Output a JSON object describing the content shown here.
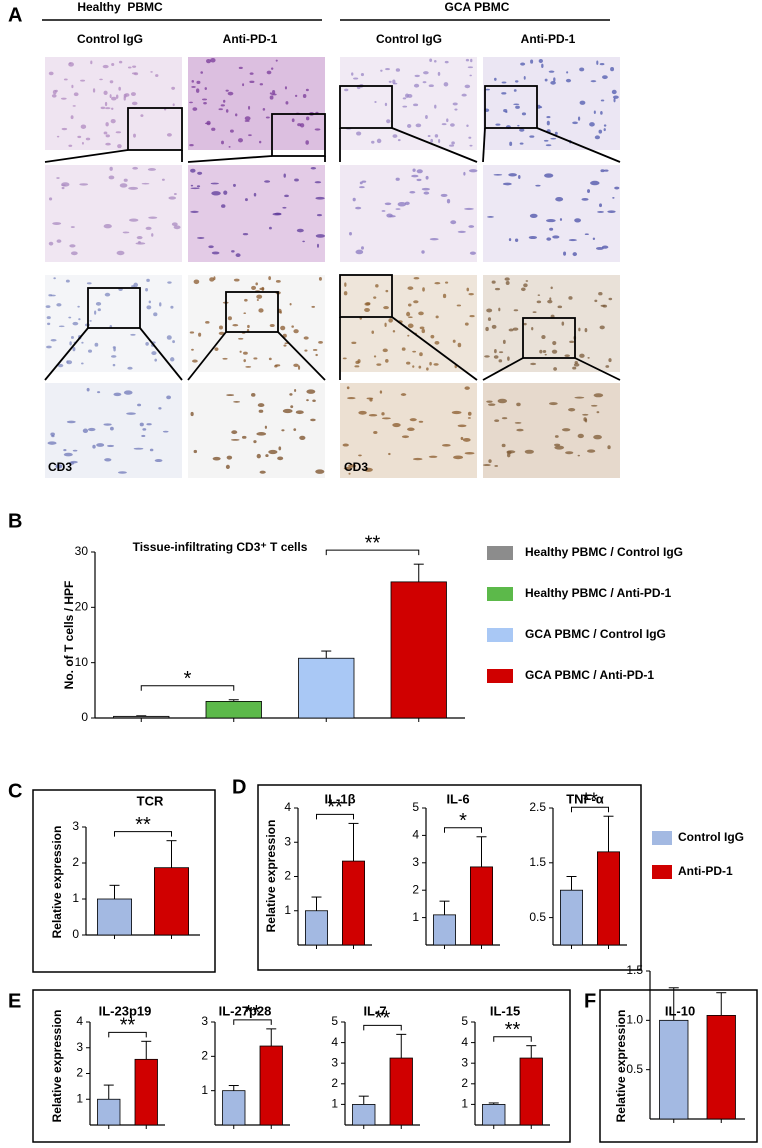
{
  "panel_a": {
    "label": "A",
    "groups": [
      {
        "title": "Healthy  PBMC",
        "columns": [
          "Control IgG",
          "Anti-PD-1"
        ]
      },
      {
        "title": "GCA PBMC",
        "columns": [
          "Control IgG",
          "Anti-PD-1"
        ]
      }
    ],
    "stain_labels": [
      "CD3",
      "CD3"
    ]
  },
  "shared_legend": {
    "series": [
      {
        "name": "Control IgG",
        "color": "#a3b9e2"
      },
      {
        "name": "Anti-PD-1",
        "color": "#d00000"
      }
    ]
  },
  "chart_data": [
    {
      "type": "bar",
      "panel": "B",
      "title": "Tissue-infiltrating CD3⁺ T cells",
      "y_label": "No. of T cells / HPF",
      "categories": [
        null
      ],
      "series": [
        {
          "name": "Healthy PBMC / Control IgG",
          "color": "#8c8c8c",
          "values": [
            0.3
          ],
          "errors": [
            0.1
          ]
        },
        {
          "name": "Healthy PBMC / Anti-PD-1",
          "color": "#5cb94a",
          "values": [
            3.0
          ],
          "errors": [
            0.3
          ]
        },
        {
          "name": "GCA PBMC / Control IgG",
          "color": "#a9c8f5",
          "values": [
            10.8
          ],
          "errors": [
            1.3
          ]
        },
        {
          "name": "GCA PBMC / Anti-PD-1",
          "color": "#d00000",
          "values": [
            24.6
          ],
          "errors": [
            3.2
          ]
        }
      ],
      "ylim": [
        0,
        30
      ],
      "yticks": [
        0,
        10,
        20,
        30
      ],
      "significance": [
        "*",
        "**"
      ]
    },
    {
      "type": "bar",
      "panel": "C",
      "y_label": "Relative expression",
      "categories": [
        null,
        null
      ],
      "subplots": [
        {
          "title": "TCR",
          "values": [
            1.0,
            1.87
          ],
          "errors": [
            0.38,
            0.75
          ],
          "ylim": [
            0,
            3
          ],
          "yticks": [
            0,
            1,
            2,
            3
          ],
          "significance": "**"
        }
      ]
    },
    {
      "type": "bar",
      "panel": "D",
      "y_label": "Relative expression",
      "categories": [
        null,
        null
      ],
      "subplots": [
        {
          "title": "IL-1β",
          "values": [
            1.0,
            2.45
          ],
          "errors": [
            0.4,
            1.1
          ],
          "ylim": [
            0,
            4
          ],
          "yticks": [
            1,
            2,
            3,
            4
          ],
          "significance": "**"
        },
        {
          "title": "IL-6",
          "values": [
            1.1,
            2.85
          ],
          "errors": [
            0.5,
            1.1
          ],
          "ylim": [
            0,
            5
          ],
          "yticks": [
            1,
            2,
            3,
            4,
            5
          ],
          "significance": "*"
        },
        {
          "title": "TNF-α",
          "values": [
            1.0,
            1.7
          ],
          "errors": [
            0.25,
            0.65
          ],
          "ylim": [
            0,
            2.5
          ],
          "yticks": [
            0.5,
            1.5,
            2.5
          ],
          "significance": "**"
        }
      ]
    },
    {
      "type": "bar",
      "panel": "E",
      "y_label": "Relative expression",
      "categories": [
        null,
        null
      ],
      "subplots": [
        {
          "title": "IL-23p19",
          "values": [
            1.0,
            2.55
          ],
          "errors": [
            0.55,
            0.7
          ],
          "ylim": [
            0,
            4
          ],
          "yticks": [
            1,
            2,
            3,
            4
          ],
          "significance": "**"
        },
        {
          "title": "IL-27p28",
          "values": [
            1.0,
            2.3
          ],
          "errors": [
            0.15,
            0.5
          ],
          "ylim": [
            0,
            3
          ],
          "yticks": [
            1,
            2,
            3
          ],
          "significance": "**"
        },
        {
          "title": "IL-7",
          "values": [
            1.0,
            3.25
          ],
          "errors": [
            0.4,
            1.15
          ],
          "ylim": [
            0,
            5
          ],
          "yticks": [
            1,
            2,
            3,
            4,
            5
          ],
          "significance": "**"
        },
        {
          "title": "IL-15",
          "values": [
            1.0,
            3.25
          ],
          "errors": [
            0.07,
            0.6
          ],
          "ylim": [
            0,
            5
          ],
          "yticks": [
            1,
            2,
            3,
            4,
            5
          ],
          "significance": "**"
        }
      ]
    },
    {
      "type": "bar",
      "panel": "F",
      "y_label": "Relative expression",
      "categories": [
        null,
        null
      ],
      "subplots": [
        {
          "title": "IL-10",
          "values": [
            1.0,
            1.05
          ],
          "errors": [
            0.33,
            0.23
          ],
          "ylim": [
            0,
            1.5
          ],
          "yticks": [
            0.5,
            {
              "value": 1,
              "label": "1.0"
            },
            1.5
          ]
        }
      ]
    }
  ]
}
